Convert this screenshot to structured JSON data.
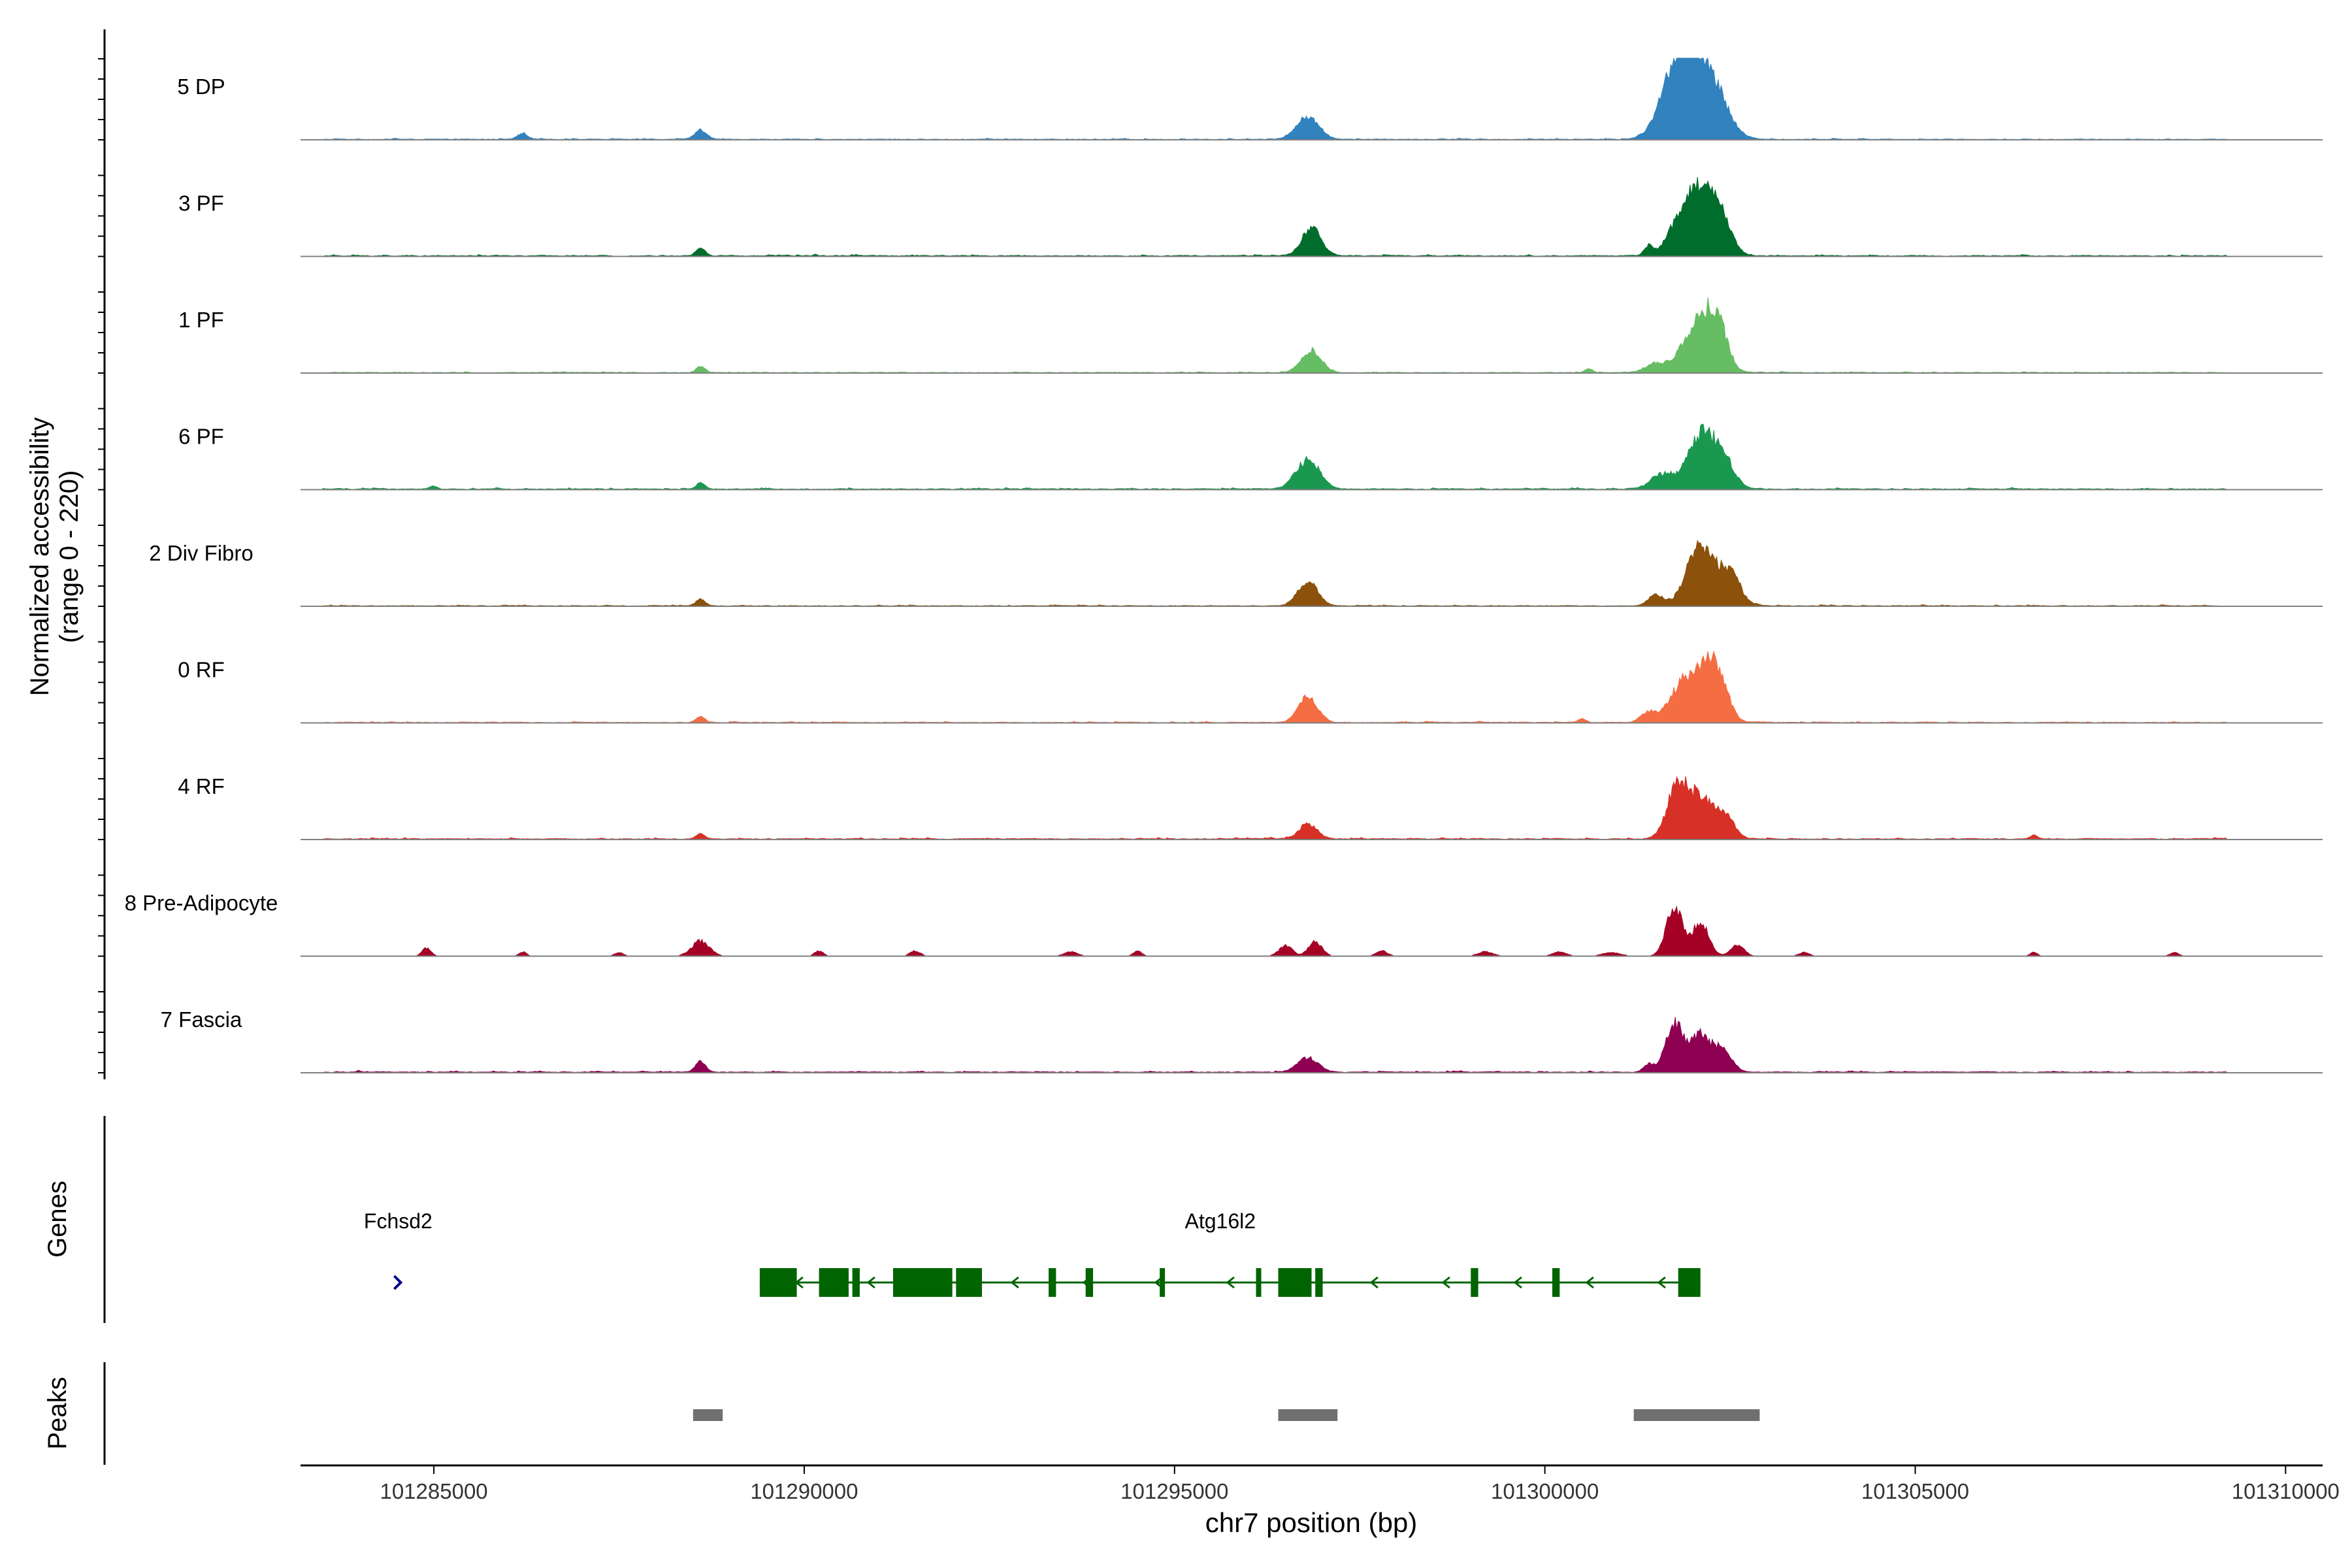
{
  "chart_data": {
    "type": "area",
    "title": "",
    "ylabel": "Normalized accessibility",
    "ylabel_range": "(range 0 - 220)",
    "xlabel": "chr7 position (bp)",
    "xlim": [
      101283200,
      101310500
    ],
    "ylim": [
      0,
      220
    ],
    "x_ticks": [
      {
        "value": 101285000,
        "label": "101285000"
      },
      {
        "value": 101290000,
        "label": "101290000"
      },
      {
        "value": 101295000,
        "label": "101295000"
      },
      {
        "value": 101300000,
        "label": "101300000"
      },
      {
        "value": 101305000,
        "label": "101305000"
      },
      {
        "value": 101310000,
        "label": "101310000"
      }
    ],
    "tracks": [
      {
        "name": "5 DP",
        "color": "#3182bd",
        "noise": 3,
        "peaks": [
          [
            101286200,
            70,
            16
          ],
          [
            101288600,
            80,
            24
          ],
          [
            101296800,
            150,
            60
          ],
          [
            101301700,
            200,
            74
          ],
          [
            101301850,
            200,
            130
          ],
          [
            101302050,
            200,
            120
          ],
          [
            101302300,
            200,
            100
          ]
        ]
      },
      {
        "name": "3 PF",
        "color": "#006d2c",
        "noise": 4,
        "peaks": [
          [
            101288600,
            60,
            20
          ],
          [
            101296850,
            130,
            75
          ],
          [
            101301400,
            60,
            25
          ],
          [
            101301850,
            170,
            105
          ],
          [
            101302100,
            150,
            126
          ],
          [
            101302350,
            150,
            118
          ]
        ]
      },
      {
        "name": "1 PF",
        "color": "#66bd63",
        "noise": 3,
        "peaks": [
          [
            101288600,
            60,
            16
          ],
          [
            101296850,
            130,
            60
          ],
          [
            101300600,
            50,
            10
          ],
          [
            101301500,
            140,
            25
          ],
          [
            101301900,
            150,
            60
          ],
          [
            101302150,
            150,
            120
          ],
          [
            101302350,
            130,
            105
          ]
        ]
      },
      {
        "name": "6 PF",
        "color": "#1a9850",
        "noise": 4,
        "peaks": [
          [
            101285000,
            50,
            8
          ],
          [
            101288600,
            60,
            16
          ],
          [
            101296800,
            160,
            78
          ],
          [
            101301600,
            160,
            40
          ],
          [
            101302100,
            170,
            140
          ],
          [
            101302400,
            150,
            80
          ]
        ]
      },
      {
        "name": "2 Div Fibro",
        "color": "#8c510a",
        "noise": 3,
        "peaks": [
          [
            101288600,
            60,
            18
          ],
          [
            101296800,
            130,
            66
          ],
          [
            101301500,
            100,
            30
          ],
          [
            101302100,
            180,
            165
          ],
          [
            101302500,
            140,
            85
          ]
        ]
      },
      {
        "name": "0 RF",
        "color": "#f46d43",
        "noise": 3,
        "peaks": [
          [
            101288600,
            60,
            14
          ],
          [
            101296800,
            130,
            70
          ],
          [
            101300500,
            50,
            10
          ],
          [
            101301400,
            100,
            30
          ],
          [
            101301800,
            150,
            80
          ],
          [
            101302100,
            160,
            132
          ],
          [
            101302350,
            130,
            110
          ]
        ]
      },
      {
        "name": "4 RF",
        "color": "#d73027",
        "noise": 4,
        "peaks": [
          [
            101288600,
            60,
            14
          ],
          [
            101296800,
            120,
            40
          ],
          [
            101301800,
            140,
            150
          ],
          [
            101302100,
            130,
            100
          ],
          [
            101302400,
            140,
            70
          ],
          [
            101306600,
            50,
            10
          ]
        ]
      },
      {
        "name": "8 Pre-Adipocyte",
        "color": "#a50026",
        "noise": 0,
        "peaks": [
          [
            101284900,
            60,
            22
          ],
          [
            101286200,
            50,
            12
          ],
          [
            101287500,
            60,
            10
          ],
          [
            101288600,
            120,
            40
          ],
          [
            101290200,
            60,
            14
          ],
          [
            101291500,
            70,
            14
          ],
          [
            101293600,
            90,
            12
          ],
          [
            101294500,
            60,
            14
          ],
          [
            101296500,
            90,
            28
          ],
          [
            101296900,
            90,
            38
          ],
          [
            101297800,
            80,
            14
          ],
          [
            101299200,
            100,
            12
          ],
          [
            101300200,
            90,
            12
          ],
          [
            101300900,
            120,
            10
          ],
          [
            101301750,
            110,
            130
          ],
          [
            101302100,
            110,
            92
          ],
          [
            101302600,
            90,
            30
          ],
          [
            101303500,
            70,
            10
          ],
          [
            101306600,
            50,
            10
          ],
          [
            101308500,
            60,
            10
          ]
        ]
      },
      {
        "name": "7 Fascia",
        "color": "#8e0152",
        "noise": 4,
        "peaks": [
          [
            101288600,
            70,
            28
          ],
          [
            101296800,
            140,
            38
          ],
          [
            101301400,
            70,
            20
          ],
          [
            101301750,
            120,
            132
          ],
          [
            101302100,
            130,
            98
          ],
          [
            101302400,
            120,
            60
          ]
        ]
      }
    ],
    "genes": {
      "label": "Genes",
      "color": "#006400",
      "items": [
        {
          "name": "Fchsd2",
          "label_x": 101284500,
          "strand": "+",
          "start": 101284500,
          "end": 101284500,
          "exons": []
        },
        {
          "name": "Atg16l2",
          "label_x": 101295600,
          "strand": "-",
          "start": 101289400,
          "end": 101302100,
          "exons": [
            [
              101289400,
              101289900
            ],
            [
              101290200,
              101290600
            ],
            [
              101290650,
              101290750
            ],
            [
              101291200,
              101292000
            ],
            [
              101292050,
              101292400
            ],
            [
              101293300,
              101293400
            ],
            [
              101293800,
              101293900
            ],
            [
              101294800,
              101294830
            ],
            [
              101296100,
              101296150
            ],
            [
              101296400,
              101296850
            ],
            [
              101296900,
              101297000
            ],
            [
              101299000,
              101299100
            ],
            [
              101300100,
              101300200
            ],
            [
              101301800,
              101302100
            ]
          ]
        }
      ]
    },
    "peaks_track": {
      "label": "Peaks",
      "color": "#707070",
      "regions": [
        [
          101288500,
          101288900
        ],
        [
          101296400,
          101297200
        ],
        [
          101301200,
          101302900
        ]
      ]
    }
  }
}
